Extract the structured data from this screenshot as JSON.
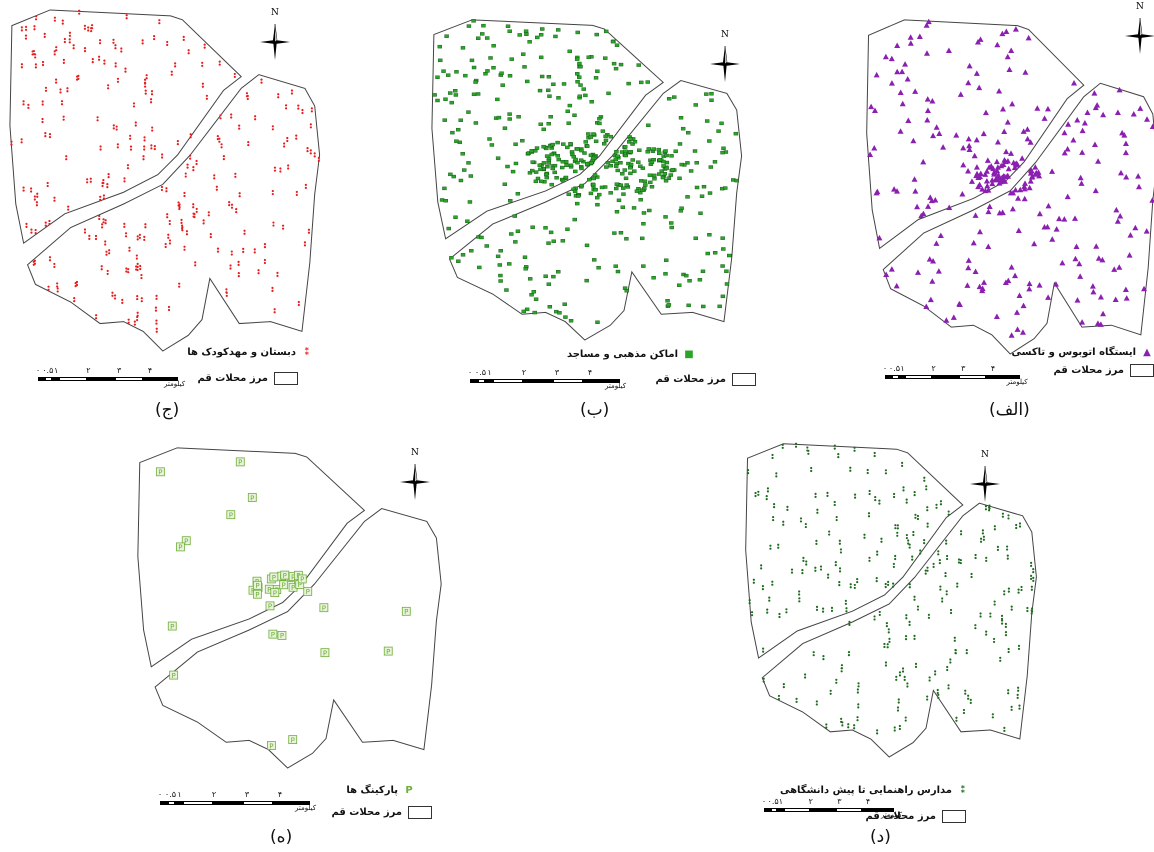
{
  "panels": [
    {
      "id": "c",
      "caption": "(ج)",
      "point_label": "دبستان و مهدکودک ها",
      "point_symbol": "pin",
      "point_color": "#e81c1c",
      "boundary_label": "مرز محلات قم",
      "scale_unit": "کیلومتر",
      "scale_ticks": [
        "۰",
        "۰.۵",
        "۱",
        "۲",
        "۳",
        "۴"
      ],
      "north": "N"
    },
    {
      "id": "b",
      "caption": "(ب)",
      "point_label": "اماکن مذهبی و مساجد",
      "point_symbol": "square",
      "point_color": "#2aa52a",
      "boundary_label": "مرز محلات قم",
      "scale_unit": "کیلومتر",
      "scale_ticks": [
        "۰",
        "۰.۵",
        "۱",
        "۲",
        "۳",
        "۴"
      ],
      "north": "N"
    },
    {
      "id": "alef",
      "caption": "(الف)",
      "point_label": "ایستگاه اتوبوس و تاکسی",
      "point_symbol": "triangle",
      "point_color": "#8a1fb0",
      "boundary_label": "مرز محلات قم",
      "scale_unit": "کیلومتر",
      "scale_ticks": [
        "۰",
        "۰.۵",
        "۱",
        "۲",
        "۳",
        "۴"
      ],
      "north": "N"
    },
    {
      "id": "h",
      "caption": "(ه)",
      "point_label": "پارکینگ ها",
      "point_symbol": "parking",
      "point_color": "#6fae3a",
      "boundary_label": "مرز محلات قم",
      "scale_unit": "کیلومتر",
      "scale_ticks": [
        "۰",
        "۰.۵",
        "۱",
        "۲",
        "۳",
        "۴"
      ],
      "north": "N"
    },
    {
      "id": "d",
      "caption": "(د)",
      "point_label": "مدارس راهنمایی تا پیش دانشگاهی",
      "point_symbol": "pin",
      "point_color": "#1f6b1f",
      "boundary_label": "مرز محلات قم",
      "scale_unit": "کیلومتر",
      "scale_ticks": [
        "۰",
        "۰.۵",
        "۱",
        "۲",
        "۳",
        "۴"
      ],
      "north": "N"
    }
  ]
}
